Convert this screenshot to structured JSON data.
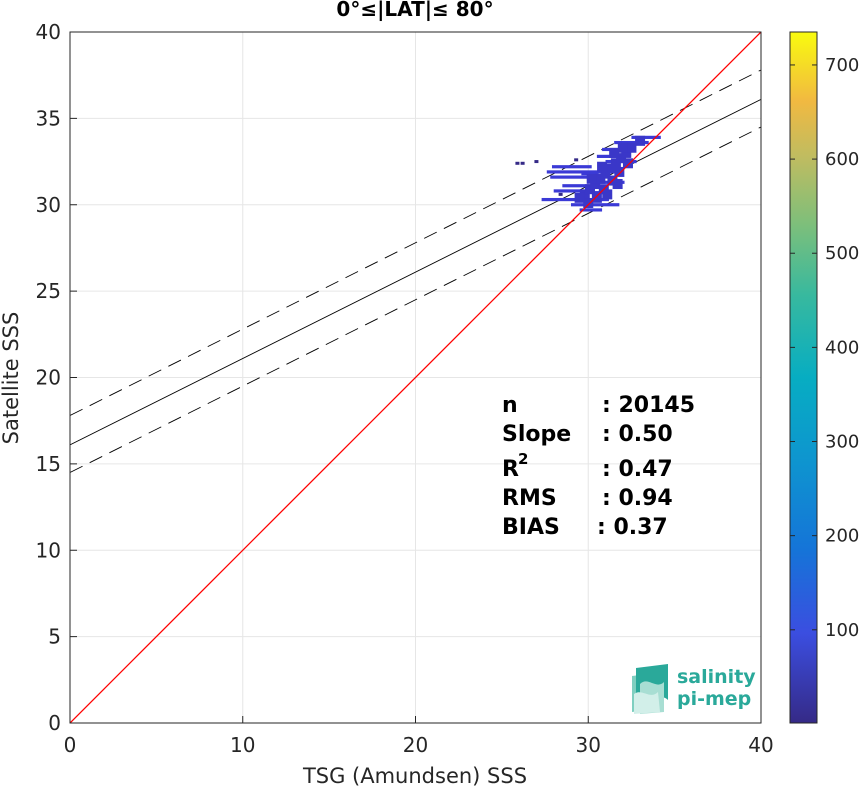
{
  "chart_data": {
    "type": "scatter",
    "title": "0°≤|LAT|≤ 80°",
    "xlabel": "TSG (Amundsen) SSS",
    "ylabel": "Satellite SSS",
    "xlim": [
      0,
      40
    ],
    "ylim": [
      0,
      40
    ],
    "xticks": [
      "0",
      "10",
      "20",
      "30",
      "40"
    ],
    "yticks": [
      "0",
      "5",
      "10",
      "15",
      "20",
      "25",
      "30",
      "35",
      "40"
    ],
    "grid": true,
    "colorbar": {
      "range": [
        1,
        735
      ],
      "ticks": [
        "100",
        "200",
        "300",
        "400",
        "500",
        "600",
        "700"
      ],
      "colormap": "parula"
    },
    "lines": {
      "one_to_one": {
        "color": "#ff0000"
      },
      "regression": {
        "slope": 0.5,
        "intercept": 16.1,
        "color": "#000000"
      },
      "confidence_upper": {
        "slope": 0.5,
        "intercept": 17.8,
        "style": "dashed"
      },
      "confidence_lower": {
        "slope": 0.5,
        "intercept": 14.5,
        "style": "dashed"
      }
    },
    "density_segments": [
      {
        "x0": 27.6,
        "x1": 30.8,
        "y": 31.9
      },
      {
        "x0": 27.8,
        "x1": 30.5,
        "y": 31.6
      },
      {
        "x0": 27.9,
        "x1": 30.2,
        "y": 32.2
      },
      {
        "x0": 27.3,
        "x1": 31.2,
        "y": 30.3
      },
      {
        "x0": 28.0,
        "x1": 29.8,
        "y": 30.8
      },
      {
        "x0": 28.5,
        "x1": 30.1,
        "y": 31.1
      },
      {
        "x0": 29.0,
        "x1": 31.8,
        "y": 30.0
      },
      {
        "x0": 29.5,
        "x1": 30.8,
        "y": 29.7
      },
      {
        "x0": 30.5,
        "x1": 31.9,
        "y": 32.8
      },
      {
        "x0": 30.8,
        "x1": 32.5,
        "y": 33.2
      },
      {
        "x0": 31.5,
        "x1": 33.5,
        "y": 33.6
      },
      {
        "x0": 32.5,
        "x1": 34.2,
        "y": 33.9
      },
      {
        "x0": 30.2,
        "x1": 31.3,
        "y": 30.7
      },
      {
        "x0": 30.4,
        "x1": 32.1,
        "y": 31.3
      },
      {
        "x0": 31.0,
        "x1": 32.8,
        "y": 32.5
      },
      {
        "x0": 29.6,
        "x1": 30.6,
        "y": 31.8
      }
    ],
    "density_blob": [
      {
        "x": 29.8,
        "y": 30.6
      },
      {
        "x": 30.1,
        "y": 30.9
      },
      {
        "x": 30.4,
        "y": 31.2
      },
      {
        "x": 30.7,
        "y": 31.5
      },
      {
        "x": 31.0,
        "y": 31.8
      },
      {
        "x": 31.3,
        "y": 32.1
      },
      {
        "x": 31.6,
        "y": 32.4
      },
      {
        "x": 31.9,
        "y": 32.7
      },
      {
        "x": 32.2,
        "y": 33.0
      },
      {
        "x": 32.5,
        "y": 33.3
      },
      {
        "x": 30.0,
        "y": 30.1
      },
      {
        "x": 30.5,
        "y": 30.4
      },
      {
        "x": 30.9,
        "y": 30.9
      },
      {
        "x": 31.4,
        "y": 31.4
      },
      {
        "x": 31.8,
        "y": 31.9
      },
      {
        "x": 32.3,
        "y": 32.4
      },
      {
        "x": 29.5,
        "y": 30.4
      },
      {
        "x": 30.2,
        "y": 31.5
      },
      {
        "x": 30.8,
        "y": 32.2
      },
      {
        "x": 31.5,
        "y": 33.0
      },
      {
        "x": 32.0,
        "y": 33.3
      },
      {
        "x": 33.0,
        "y": 33.7
      },
      {
        "x": 31.1,
        "y": 30.6
      },
      {
        "x": 31.7,
        "y": 31.2
      }
    ],
    "outliers": [
      {
        "x": 25.9,
        "y": 32.4
      },
      {
        "x": 26.2,
        "y": 32.4
      },
      {
        "x": 27.0,
        "y": 32.5
      },
      {
        "x": 28.4,
        "y": 30.6
      },
      {
        "x": 29.3,
        "y": 32.6
      }
    ]
  },
  "stats": {
    "n_label": "n",
    "n_value": ": 20145",
    "slope_label": "Slope",
    "slope_value": ": 0.50",
    "r2_label": "R",
    "r2_sup": "2",
    "r2_value": ": 0.47",
    "rms_label": "RMS",
    "rms_value": ": 0.94",
    "bias_label": "BIAS",
    "bias_value": ": 0.37"
  },
  "logo": {
    "line1": "salinity",
    "line2": "pi-mep"
  }
}
